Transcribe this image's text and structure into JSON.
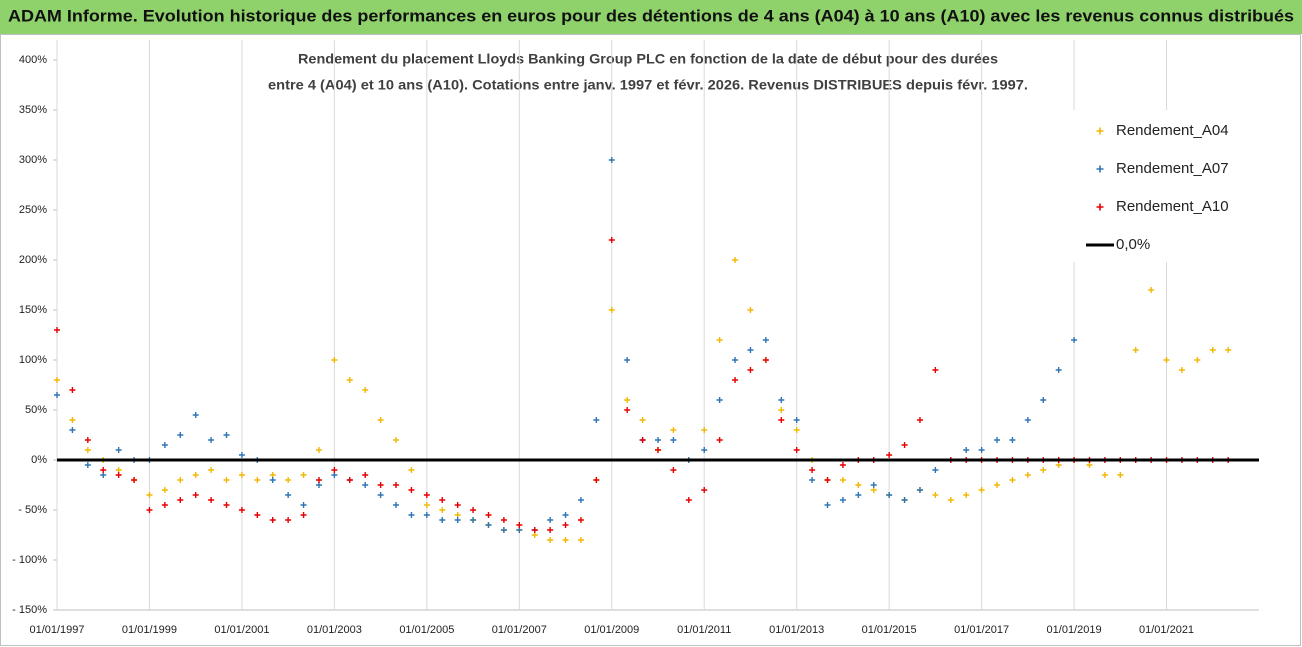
{
  "chart_data": {
    "type": "scatter",
    "title": "ADAM Informe. Evolution historique des performances en euros pour des détentions de 4 ans (A04) à 10 ans (A10) avec les revenus connus distribués",
    "subtitle": [
      "Rendement du placement Lloyds Banking Group PLC en fonction de la date de début pour des durées",
      "entre 4 (A04) et 10 ans (A10). Cotations entre janv. 1997 et févr. 2026. Revenus DISTRIBUES depuis févr. 1997."
    ],
    "xlim": [
      "1997-01",
      "2023-01"
    ],
    "xticks": [
      {
        "value": "1997-01",
        "label": "01/01/1997"
      },
      {
        "value": "1999-01",
        "label": "01/01/1999"
      },
      {
        "value": "2001-01",
        "label": "01/01/2001"
      },
      {
        "value": "2003-01",
        "label": "01/01/2003"
      },
      {
        "value": "2005-01",
        "label": "01/01/2005"
      },
      {
        "value": "2007-01",
        "label": "01/01/2007"
      },
      {
        "value": "2009-01",
        "label": "01/01/2009"
      },
      {
        "value": "2011-01",
        "label": "01/01/2011"
      },
      {
        "value": "2013-01",
        "label": "01/01/2013"
      },
      {
        "value": "2015-01",
        "label": "01/01/2015"
      },
      {
        "value": "2017-01",
        "label": "01/01/2017"
      },
      {
        "value": "2019-01",
        "label": "01/01/2019"
      },
      {
        "value": "2021-01",
        "label": "01/01/2021"
      }
    ],
    "ylim": [
      -150,
      400
    ],
    "yticks": [
      {
        "value": 400,
        "label": "400%"
      },
      {
        "value": 350,
        "label": "350%"
      },
      {
        "value": 300,
        "label": "300%"
      },
      {
        "value": 250,
        "label": "250%"
      },
      {
        "value": 200,
        "label": "200%"
      },
      {
        "value": 150,
        "label": "150%"
      },
      {
        "value": 100,
        "label": "100%"
      },
      {
        "value": 50,
        "label": "50%"
      },
      {
        "value": 0,
        "label": "0%"
      },
      {
        "value": -50,
        "label": "- 50%"
      },
      {
        "value": -100,
        "label": "- 100%"
      },
      {
        "value": -150,
        "label": "- 150%"
      }
    ],
    "grid": "x",
    "legend": "upper right",
    "reference_line": {
      "name": "0,0%",
      "value": 0,
      "color": "#000000"
    },
    "series": [
      {
        "name": "Rendement_A04",
        "color": "#f2b705",
        "x": [
          "1997-01",
          "1997-05",
          "1997-09",
          "1998-01",
          "1998-05",
          "1998-09",
          "1999-01",
          "1999-05",
          "1999-09",
          "2000-01",
          "2000-05",
          "2000-09",
          "2001-01",
          "2001-05",
          "2001-09",
          "2002-01",
          "2002-05",
          "2002-09",
          "2003-01",
          "2003-05",
          "2003-09",
          "2004-01",
          "2004-05",
          "2004-09",
          "2005-01",
          "2005-05",
          "2005-09",
          "2006-01",
          "2006-05",
          "2006-09",
          "2007-01",
          "2007-05",
          "2007-09",
          "2008-01",
          "2008-05",
          "2008-09",
          "2009-01",
          "2009-05",
          "2009-09",
          "2010-01",
          "2010-05",
          "2010-09",
          "2011-01",
          "2011-05",
          "2011-09",
          "2012-01",
          "2012-05",
          "2012-09",
          "2013-01",
          "2013-05",
          "2013-09",
          "2014-01",
          "2014-05",
          "2014-09",
          "2015-01",
          "2015-05",
          "2015-09",
          "2016-01",
          "2016-05",
          "2016-09",
          "2017-01",
          "2017-05",
          "2017-09",
          "2018-01",
          "2018-05",
          "2018-09",
          "2019-01",
          "2019-05",
          "2019-09",
          "2020-01",
          "2020-05",
          "2020-09",
          "2021-01",
          "2021-05",
          "2021-09",
          "2022-01",
          "2022-05"
        ],
        "values": [
          80,
          40,
          10,
          0,
          -10,
          -20,
          -35,
          -30,
          -20,
          -15,
          -10,
          -20,
          -15,
          -20,
          -15,
          -20,
          -15,
          10,
          100,
          80,
          70,
          40,
          20,
          -10,
          -45,
          -50,
          -55,
          -60,
          -65,
          -70,
          -70,
          -75,
          -80,
          -80,
          -80,
          -20,
          150,
          60,
          40,
          10,
          30,
          0,
          30,
          120,
          200,
          150,
          100,
          50,
          30,
          0,
          -20,
          -20,
          -25,
          -30,
          -35,
          -40,
          -30,
          -35,
          -40,
          -35,
          -30,
          -25,
          -20,
          -15,
          -10,
          -5,
          0,
          -5,
          -15,
          -15,
          110,
          170,
          100,
          90,
          100,
          110,
          110
        ]
      },
      {
        "name": "Rendement_A07",
        "color": "#2e75b6",
        "x": [
          "1997-01",
          "1997-05",
          "1997-09",
          "1998-01",
          "1998-05",
          "1998-09",
          "1999-01",
          "1999-05",
          "1999-09",
          "2000-01",
          "2000-05",
          "2000-09",
          "2001-01",
          "2001-05",
          "2001-09",
          "2002-01",
          "2002-05",
          "2002-09",
          "2003-01",
          "2003-05",
          "2003-09",
          "2004-01",
          "2004-05",
          "2004-09",
          "2005-01",
          "2005-05",
          "2005-09",
          "2006-01",
          "2006-05",
          "2006-09",
          "2007-01",
          "2007-05",
          "2007-09",
          "2008-01",
          "2008-05",
          "2008-09",
          "2009-01",
          "2009-05",
          "2009-09",
          "2010-01",
          "2010-05",
          "2010-09",
          "2011-01",
          "2011-05",
          "2011-09",
          "2012-01",
          "2012-05",
          "2012-09",
          "2013-01",
          "2013-05",
          "2013-09",
          "2014-01",
          "2014-05",
          "2014-09",
          "2015-01",
          "2015-05",
          "2015-09",
          "2016-01",
          "2016-05",
          "2016-09",
          "2017-01",
          "2017-05",
          "2017-09",
          "2018-01",
          "2018-05",
          "2018-09",
          "2019-01"
        ],
        "values": [
          65,
          30,
          -5,
          -15,
          10,
          0,
          0,
          15,
          25,
          45,
          20,
          25,
          5,
          0,
          -20,
          -35,
          -45,
          -25,
          -15,
          -20,
          -25,
          -35,
          -45,
          -55,
          -55,
          -60,
          -60,
          -60,
          -65,
          -70,
          -70,
          -70,
          -60,
          -55,
          -40,
          40,
          300,
          100,
          20,
          20,
          20,
          0,
          10,
          60,
          100,
          110,
          120,
          60,
          40,
          -20,
          -45,
          -40,
          -35,
          -25,
          -35,
          -40,
          -30,
          -10,
          0,
          10,
          10,
          20,
          20,
          40,
          60,
          90,
          120
        ]
      },
      {
        "name": "Rendement_A10",
        "color": "#e60000",
        "x": [
          "1997-01",
          "1997-05",
          "1997-09",
          "1998-01",
          "1998-05",
          "1998-09",
          "1999-01",
          "1999-05",
          "1999-09",
          "2000-01",
          "2000-05",
          "2000-09",
          "2001-01",
          "2001-05",
          "2001-09",
          "2002-01",
          "2002-05",
          "2002-09",
          "2003-01",
          "2003-05",
          "2003-09",
          "2004-01",
          "2004-05",
          "2004-09",
          "2005-01",
          "2005-05",
          "2005-09",
          "2006-01",
          "2006-05",
          "2006-09",
          "2007-01",
          "2007-05",
          "2007-09",
          "2008-01",
          "2008-05",
          "2008-09",
          "2009-01",
          "2009-05",
          "2009-09",
          "2010-01",
          "2010-05",
          "2010-09",
          "2011-01",
          "2011-05",
          "2011-09",
          "2012-01",
          "2012-05",
          "2012-09",
          "2013-01",
          "2013-05",
          "2013-09",
          "2014-01",
          "2014-05",
          "2014-09",
          "2015-01",
          "2015-05",
          "2015-09",
          "2016-01",
          "2016-05",
          "2016-09",
          "2017-01",
          "2017-05",
          "2017-09",
          "2018-01",
          "2018-05",
          "2018-09",
          "2019-01",
          "2019-05",
          "2019-09",
          "2020-01",
          "2020-05",
          "2020-09",
          "2021-01",
          "2021-05",
          "2021-09",
          "2022-01",
          "2022-05"
        ],
        "values": [
          130,
          70,
          20,
          -10,
          -15,
          -20,
          -50,
          -45,
          -40,
          -35,
          -40,
          -45,
          -50,
          -55,
          -60,
          -60,
          -55,
          -20,
          -10,
          -20,
          -15,
          -25,
          -25,
          -30,
          -35,
          -40,
          -45,
          -50,
          -55,
          -60,
          -65,
          -70,
          -70,
          -65,
          -60,
          -20,
          220,
          50,
          20,
          10,
          -10,
          -40,
          -30,
          20,
          80,
          90,
          100,
          40,
          10,
          -10,
          -20,
          -5,
          0,
          0,
          5,
          15,
          40,
          90,
          0,
          0,
          0,
          0,
          0,
          0,
          0,
          0,
          0,
          0,
          0,
          0,
          0,
          0,
          0,
          0,
          0,
          0,
          0
        ]
      }
    ]
  }
}
